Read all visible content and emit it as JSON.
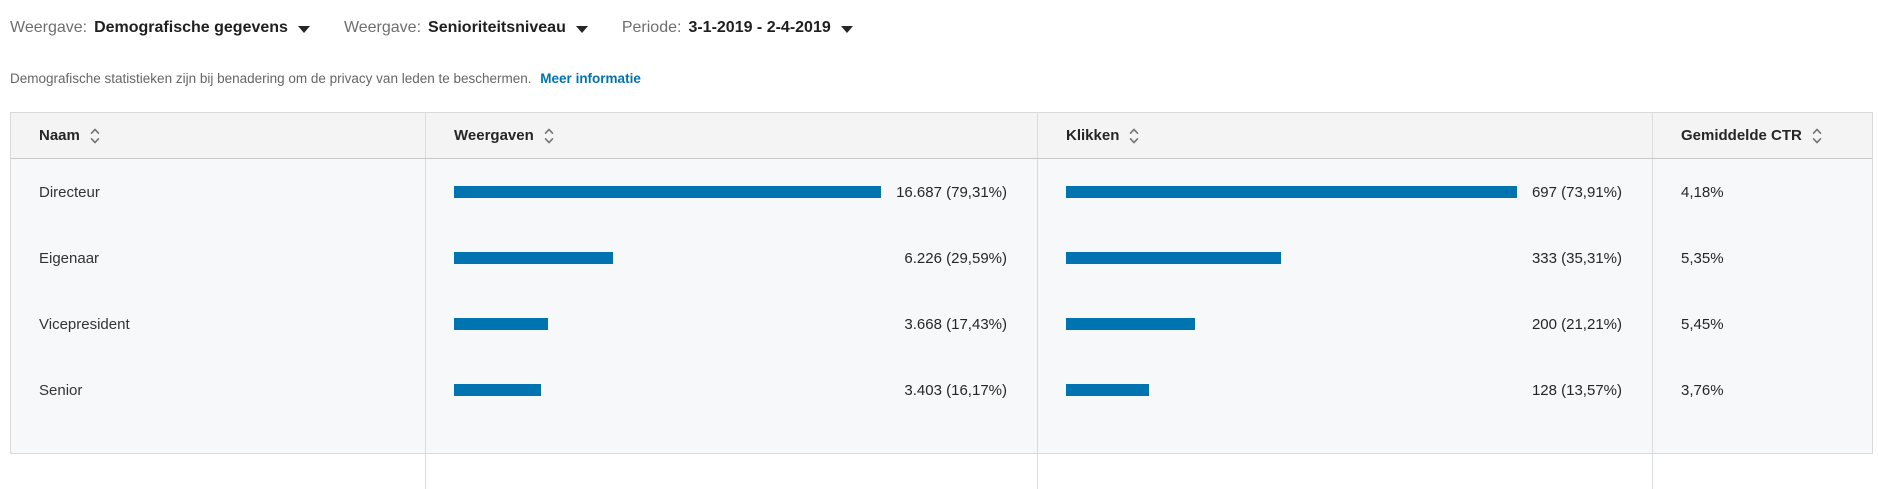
{
  "controls": {
    "view_demographics": {
      "label": "Weergave:",
      "value": "Demografische gegevens"
    },
    "view_seniority": {
      "label": "Weergave:",
      "value": "Senioriteitsniveau"
    },
    "period": {
      "label": "Periode:",
      "value": "3-1-2019 - 2-4-2019"
    }
  },
  "notice": {
    "text": "Demografische statistieken zijn bij benadering om de privacy van leden te beschermen.",
    "link_label": "Meer informatie"
  },
  "table": {
    "columns": {
      "name": "Naam",
      "impressions": "Weergaven",
      "clicks": "Klikken",
      "ctr": "Gemiddelde CTR"
    },
    "rows": [
      {
        "name": "Directeur",
        "impressions_display": "16.687 (79,31%)",
        "impressions_pct": 79.31,
        "clicks_display": "697 (73,91%)",
        "clicks_pct": 73.91,
        "ctr": "4,18%"
      },
      {
        "name": "Eigenaar",
        "impressions_display": "6.226 (29,59%)",
        "impressions_pct": 29.59,
        "clicks_display": "333 (35,31%)",
        "clicks_pct": 35.31,
        "ctr": "5,35%"
      },
      {
        "name": "Vicepresident",
        "impressions_display": "3.668 (17,43%)",
        "impressions_pct": 17.43,
        "clicks_display": "200 (21,21%)",
        "clicks_pct": 21.21,
        "ctr": "5,45%"
      },
      {
        "name": "Senior",
        "impressions_display": "3.403 (16,17%)",
        "impressions_pct": 16.17,
        "clicks_display": "128 (13,57%)",
        "clicks_pct": 13.57,
        "ctr": "3,76%"
      }
    ]
  },
  "colors": {
    "bar_blue": "#0073b1",
    "link_blue": "#0073b1",
    "header_bg": "#f4f4f4",
    "body_bg": "#f6f8f9"
  }
}
